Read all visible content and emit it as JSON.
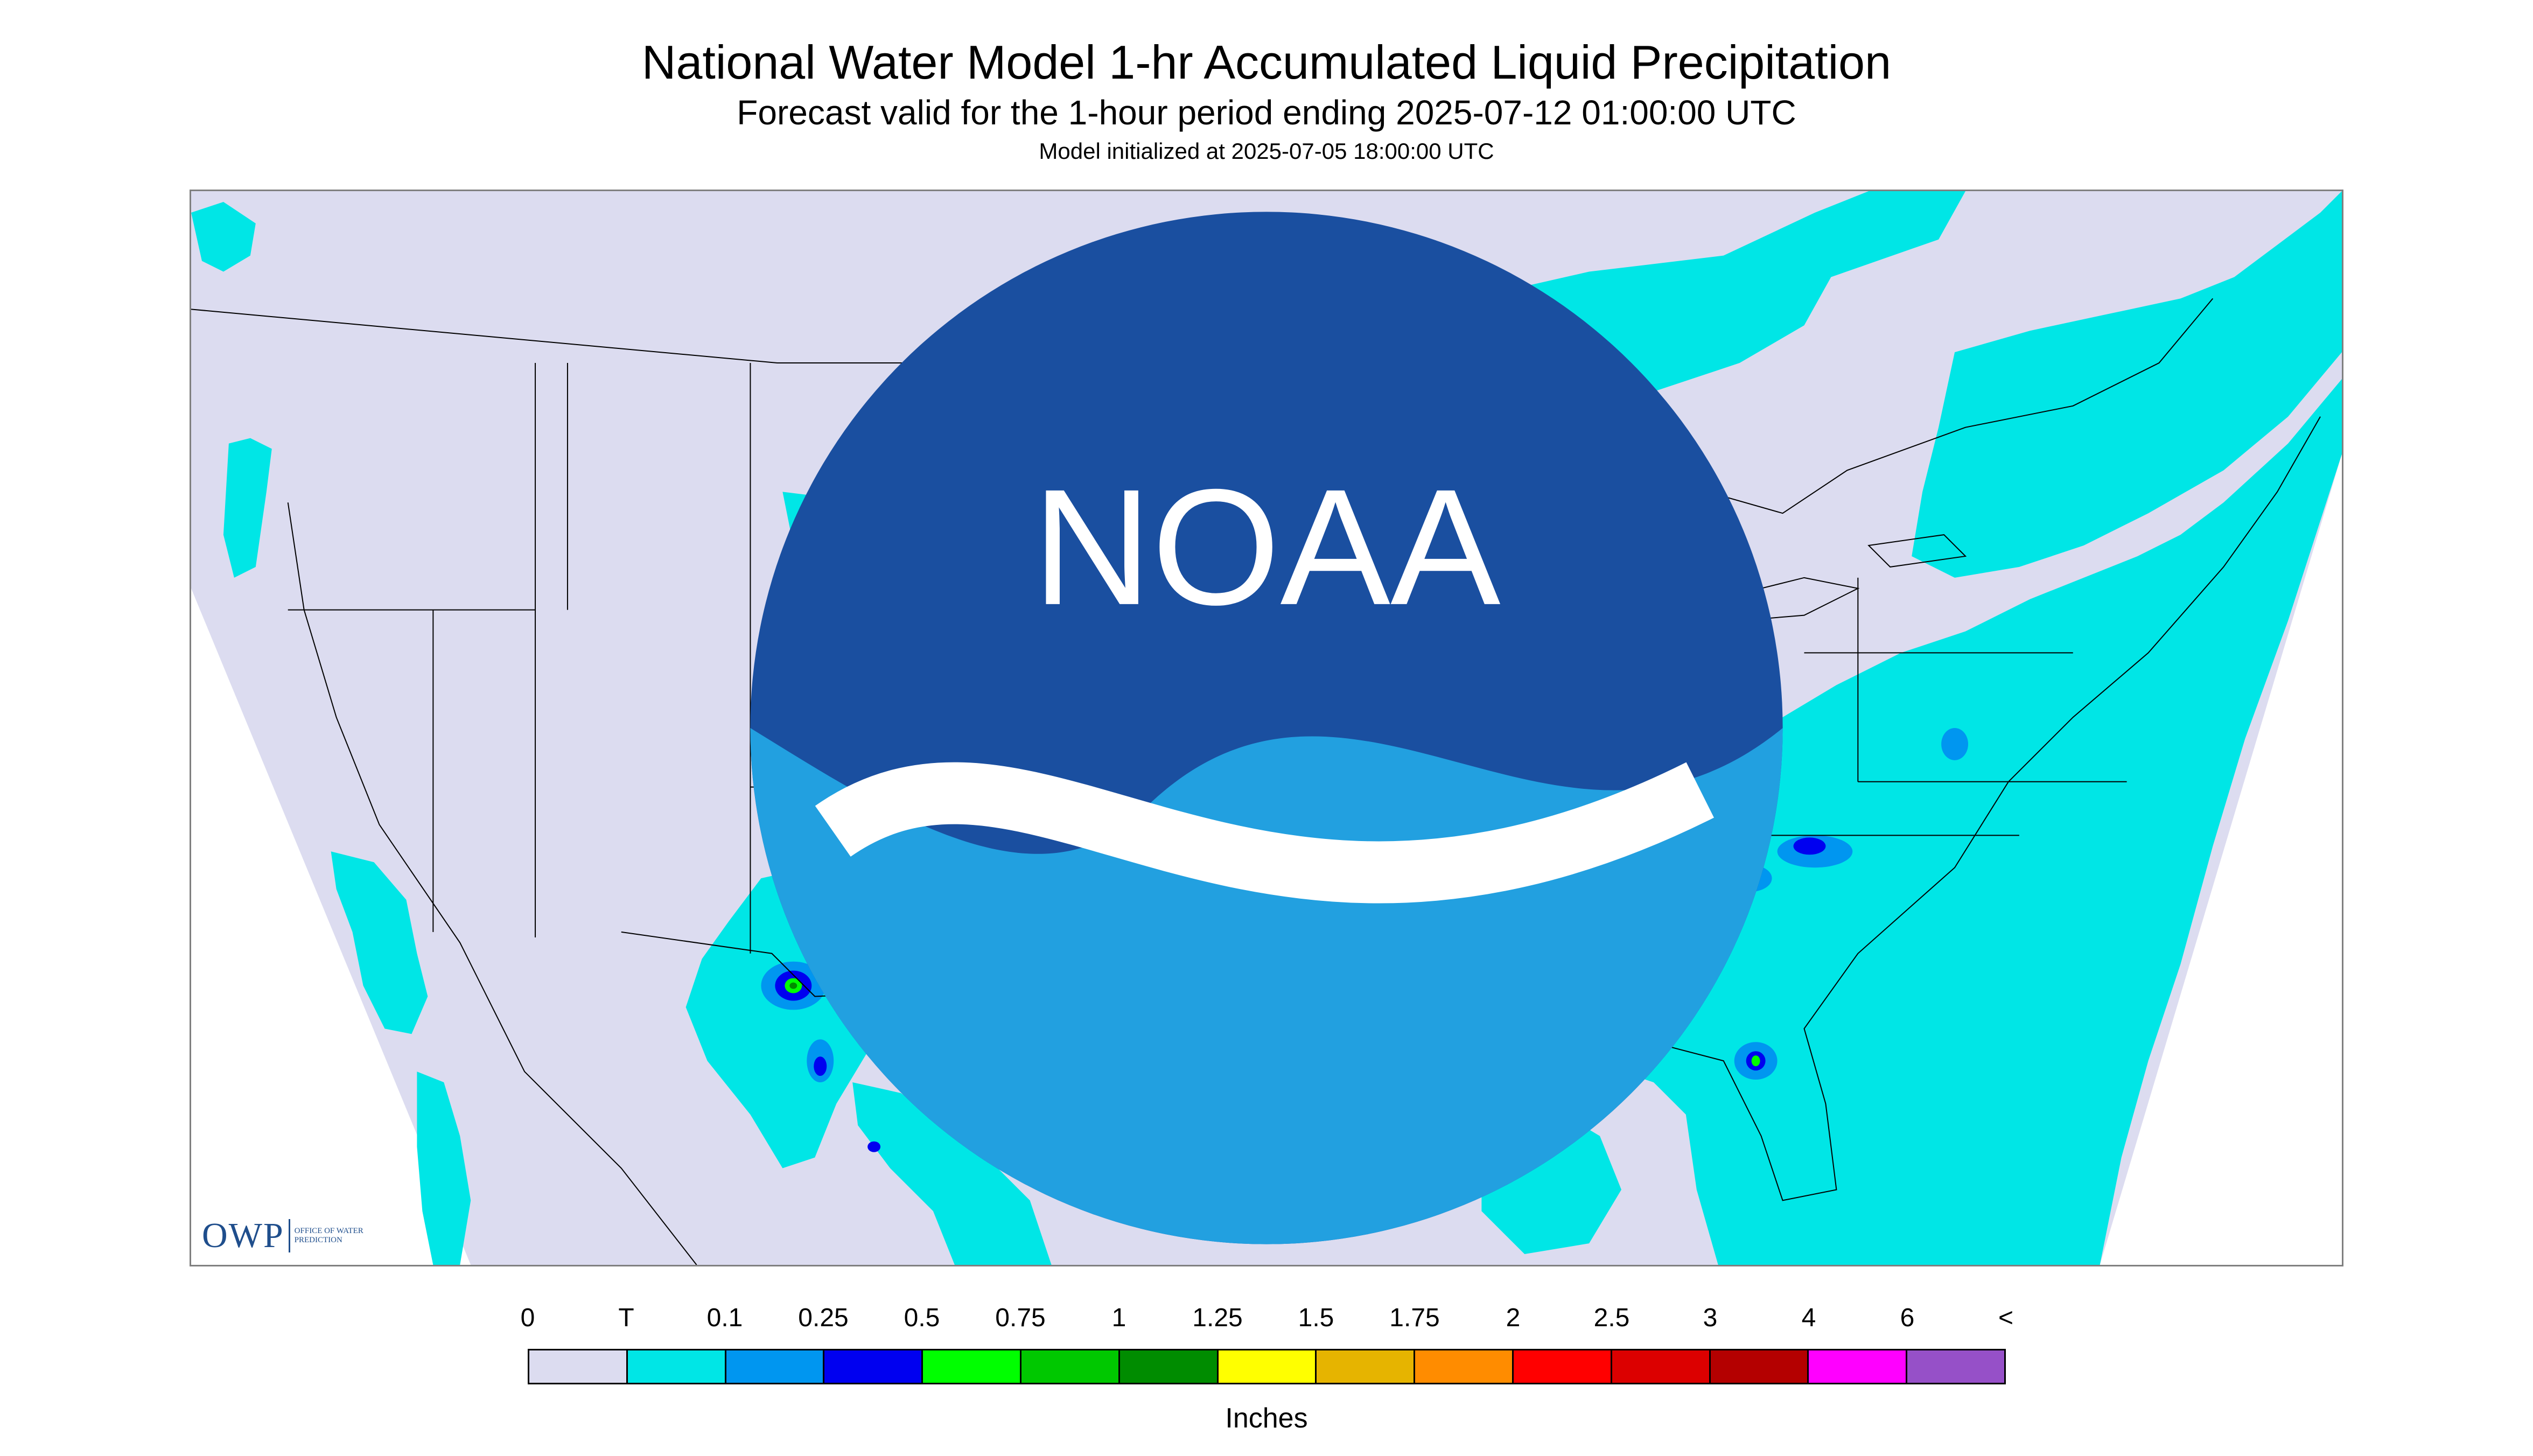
{
  "header": {
    "title": "National Water Model 1-hr Accumulated Liquid Precipitation",
    "subtitle": "Forecast valid for the 1-hour period ending 2025-07-12 01:00:00 UTC",
    "init": "Model initialized at 2025-07-05 18:00:00 UTC"
  },
  "logos": {
    "owp_word": "OWP",
    "owp_sub": "OFFICE OF WATER PREDICTION",
    "noaa_word": "NOAA"
  },
  "legend": {
    "units": "Inches",
    "labels": [
      "0",
      "T",
      "0.1",
      "0.25",
      "0.5",
      "0.75",
      "1",
      "1.25",
      "1.5",
      "1.75",
      "2",
      "2.5",
      "3",
      "4",
      "6",
      "<"
    ],
    "colors": [
      "#dcdcf0",
      "#00e6e6",
      "#0096f0",
      "#0000f0",
      "#00ff00",
      "#00c800",
      "#008c00",
      "#ffff00",
      "#e6b400",
      "#ff8c00",
      "#ff0000",
      "#dc0000",
      "#b40000",
      "#ff00ff",
      "#9650c8"
    ]
  },
  "map": {
    "background_color": "#dcdcf0",
    "outside_color": "#ffffff",
    "boundary_color": "#000000"
  }
}
